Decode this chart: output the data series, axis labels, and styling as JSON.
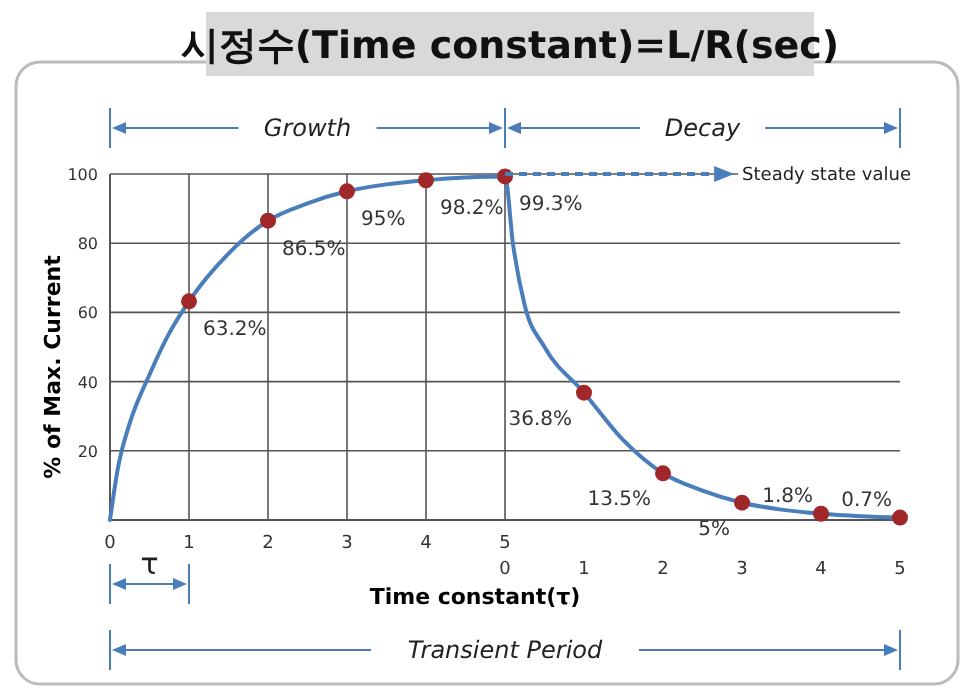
{
  "chart_data": {
    "type": "line",
    "title": "시정수(Time constant)=L/R(sec)",
    "xlabel": "Time constant(τ)",
    "ylabel": "% of Max. Current",
    "xlim": [
      0,
      10
    ],
    "ylim": [
      0,
      100
    ],
    "xticks": [
      0,
      1,
      2,
      3,
      4,
      5
    ],
    "x2lim": [
      -5,
      5
    ],
    "x2ticks": [
      0,
      1,
      2,
      3,
      4,
      5
    ],
    "yticks": [
      20,
      40,
      60,
      80,
      100
    ],
    "grid": true,
    "line_style": "solid",
    "series": [
      {
        "marker": "none",
        "color": "#4a7ebb",
        "x": [
          0,
          0.1,
          0.25,
          0.5,
          0.75,
          1,
          1.5,
          2,
          2.5,
          3,
          3.5,
          4,
          4.5,
          5,
          5.1,
          5.25,
          5.5,
          6,
          6.5,
          7,
          7.5,
          8,
          8.5,
          9,
          9.5,
          10
        ],
        "values": [
          0,
          15,
          28,
          42,
          54,
          63.2,
          77,
          86.5,
          91.5,
          95,
          97,
          98.2,
          99,
          99.3,
          80,
          62,
          50,
          36.8,
          23,
          13.5,
          8.5,
          5,
          3,
          1.8,
          1.1,
          0.7
        ]
      },
      {
        "type": "scatter",
        "marker": "circle",
        "color": "#a0282a",
        "x": [
          1,
          2,
          3,
          4,
          5,
          6,
          7,
          8,
          9,
          10
        ],
        "values": [
          63.2,
          86.5,
          95,
          98.2,
          99.3,
          36.8,
          13.5,
          5,
          1.8,
          0.7
        ],
        "value_labels": [
          "63.2%",
          "86.5%",
          "95%",
          "98.2%",
          "99.3%",
          "36.8%",
          "13.5%",
          "5%",
          "1.8%",
          "0.7%"
        ]
      }
    ],
    "annotations": [
      "Growth",
      "Decay",
      "Transient Period",
      "τ",
      "Steady state value"
    ]
  }
}
